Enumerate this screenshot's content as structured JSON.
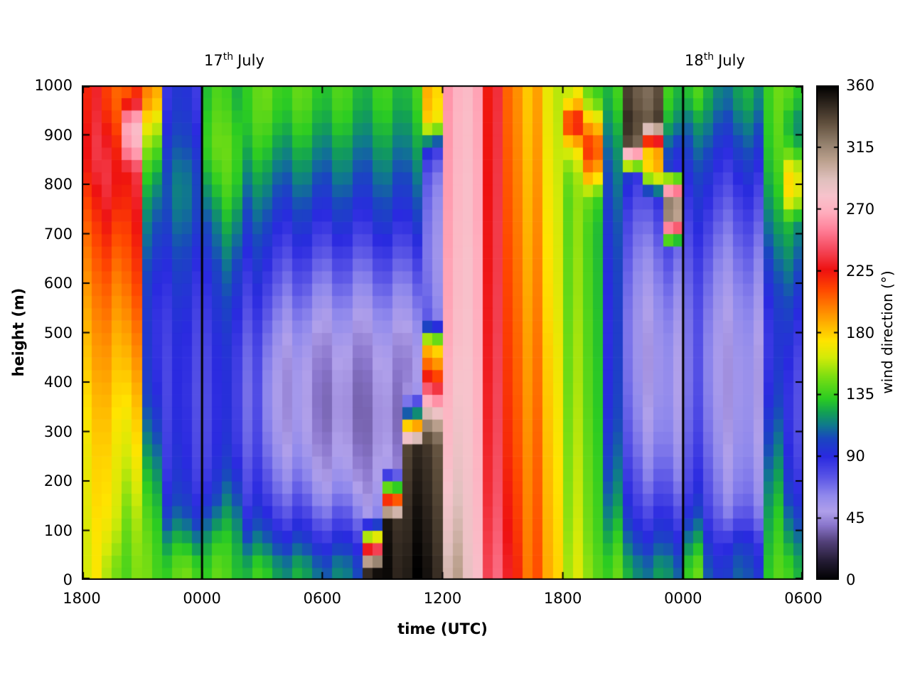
{
  "figure": {
    "background": "#ffffff"
  },
  "chart_data": {
    "type": "heatmap",
    "title": "",
    "xlabel": "time (UTC)",
    "ylabel": "height (m)",
    "colorbar_label": "wind direction (°)",
    "x_ticks": [
      "1800",
      "0000",
      "0600",
      "1200",
      "1800",
      "0000",
      "0600"
    ],
    "x_tick_hours": [
      0,
      6,
      12,
      18,
      24,
      30,
      36
    ],
    "x_range_hours": [
      0,
      36
    ],
    "y_ticks": [
      0,
      100,
      200,
      300,
      400,
      500,
      600,
      700,
      800,
      900,
      1000
    ],
    "y_range": [
      0,
      1000
    ],
    "colorbar_ticks": [
      0,
      45,
      90,
      135,
      180,
      225,
      270,
      315,
      360
    ],
    "colorbar_range": [
      0,
      360
    ],
    "day_lines_hours": [
      6,
      30
    ],
    "annotations": [
      {
        "day": "17",
        "suffix": "th",
        "month": "July",
        "at_hour": 6
      },
      {
        "day": "18",
        "suffix": "th",
        "month": "July",
        "at_hour": 30
      }
    ],
    "colormap": [
      [
        0,
        "#000000"
      ],
      [
        14,
        "#241c34"
      ],
      [
        28,
        "#53417a"
      ],
      [
        40,
        "#8a76cc"
      ],
      [
        50,
        "#b0a0ea"
      ],
      [
        62,
        "#8f88ec"
      ],
      [
        75,
        "#5a55e6"
      ],
      [
        90,
        "#2a2ae0"
      ],
      [
        103,
        "#1a46c0"
      ],
      [
        113,
        "#0f7a8c"
      ],
      [
        122,
        "#12a055"
      ],
      [
        132,
        "#2bcc22"
      ],
      [
        148,
        "#7ade12"
      ],
      [
        162,
        "#d2ea08"
      ],
      [
        174,
        "#ffe400"
      ],
      [
        186,
        "#ffb400"
      ],
      [
        198,
        "#ff8200"
      ],
      [
        212,
        "#ff4600"
      ],
      [
        226,
        "#ee1111"
      ],
      [
        240,
        "#f44658"
      ],
      [
        255,
        "#ff8098"
      ],
      [
        268,
        "#ffaebe"
      ],
      [
        280,
        "#f7c3cc"
      ],
      [
        292,
        "#dfc0bd"
      ],
      [
        305,
        "#bda28f"
      ],
      [
        318,
        "#93806d"
      ],
      [
        332,
        "#63523f"
      ],
      [
        345,
        "#352b22"
      ],
      [
        360,
        "#000000"
      ]
    ],
    "grid": {
      "time_step_hours": 1,
      "height_step_m": 50,
      "order": "each column bottom(0 m) to top(1000 m), wind direction degrees",
      "stripe_jitter": 5,
      "columns": [
        [
          168,
          168,
          170,
          172,
          173,
          175,
          178,
          181,
          185,
          188,
          192,
          196,
          201,
          206,
          212,
          219,
          228,
          232,
          229,
          226
        ],
        [
          152,
          160,
          167,
          170,
          172,
          175,
          178,
          182,
          186,
          190,
          195,
          200,
          206,
          213,
          220,
          228,
          231,
          226,
          216,
          210
        ],
        [
          144,
          147,
          151,
          157,
          164,
          170,
          175,
          181,
          187,
          193,
          199,
          205,
          211,
          216,
          221,
          226,
          231,
          266,
          272,
          214
        ],
        [
          142,
          140,
          136,
          130,
          122,
          112,
          103,
          96,
          93,
          92,
          92,
          94,
          98,
          104,
          110,
          118,
          130,
          146,
          168,
          192
        ],
        [
          138,
          125,
          106,
          95,
          90,
          88,
          86,
          85,
          85,
          86,
          88,
          91,
          95,
          100,
          106,
          110,
          108,
          101,
          95,
          91
        ],
        [
          141,
          121,
          101,
          91,
          86,
          84,
          83,
          82,
          83,
          84,
          86,
          89,
          93,
          98,
          104,
          108,
          106,
          99,
          93,
          89
        ],
        [
          138,
          128,
          110,
          95,
          88,
          85,
          84,
          84,
          85,
          86,
          89,
          92,
          96,
          103,
          110,
          121,
          132,
          140,
          138,
          134
        ],
        [
          134,
          129,
          119,
          107,
          96,
          90,
          88,
          87,
          88,
          90,
          94,
          99,
          105,
          113,
          122,
          132,
          138,
          140,
          136,
          131
        ],
        [
          131,
          112,
          95,
          85,
          80,
          76,
          74,
          73,
          74,
          76,
          80,
          85,
          91,
          97,
          104,
          112,
          121,
          130,
          136,
          138
        ],
        [
          126,
          105,
          88,
          76,
          68,
          62,
          58,
          57,
          58,
          62,
          68,
          75,
          82,
          90,
          98,
          107,
          116,
          126,
          135,
          140
        ],
        [
          121,
          100,
          82,
          70,
          60,
          54,
          50,
          49,
          50,
          54,
          60,
          68,
          76,
          85,
          94,
          103,
          113,
          122,
          132,
          138
        ],
        [
          116,
          95,
          78,
          64,
          55,
          48,
          45,
          44,
          46,
          50,
          57,
          65,
          74,
          84,
          93,
          102,
          112,
          121,
          130,
          136
        ],
        [
          111,
          92,
          74,
          60,
          50,
          45,
          42,
          42,
          44,
          48,
          55,
          63,
          72,
          82,
          92,
          101,
          110,
          118,
          128,
          134
        ],
        [
          108,
          90,
          72,
          58,
          48,
          43,
          41,
          41,
          43,
          47,
          54,
          62,
          71,
          81,
          91,
          100,
          109,
          117,
          126,
          132
        ],
        [
          350,
          195,
          60,
          50,
          45,
          42,
          41,
          42,
          44,
          48,
          55,
          63,
          72,
          82,
          92,
          100,
          108,
          116,
          124,
          130
        ],
        [
          352,
          350,
          347,
          168,
          48,
          44,
          42,
          43,
          45,
          49,
          56,
          64,
          73,
          83,
          93,
          101,
          109,
          117,
          125,
          131
        ],
        [
          355,
          352,
          350,
          347,
          344,
          341,
          132,
          52,
          46,
          50,
          57,
          65,
          74,
          84,
          94,
          102,
          110,
          118,
          126,
          132
        ],
        [
          349,
          346,
          344,
          341,
          339,
          336,
          303,
          252,
          206,
          176,
          70,
          65,
          62,
          61,
          63,
          66,
          72,
          92,
          174,
          182
        ],
        [
          301,
          295,
          290,
          286,
          282,
          280,
          278,
          276,
          274,
          272,
          271,
          270,
          270,
          269,
          269,
          268,
          268,
          267,
          267,
          266
        ],
        [
          282,
          280,
          279,
          278,
          277,
          276,
          276,
          275,
          275,
          274,
          274,
          273,
          273,
          273,
          272,
          272,
          272,
          271,
          271,
          270
        ],
        [
          244,
          242,
          240,
          238,
          237,
          236,
          235,
          235,
          234,
          234,
          233,
          233,
          232,
          232,
          232,
          231,
          231,
          230,
          230,
          229
        ],
        [
          225,
          222,
          220,
          218,
          216,
          214,
          213,
          212,
          211,
          210,
          209,
          208,
          207,
          206,
          205,
          204,
          203,
          202,
          201,
          200
        ],
        [
          205,
          204,
          203,
          202,
          201,
          200,
          199,
          198,
          197,
          196,
          195,
          194,
          193,
          192,
          191,
          190,
          189,
          188,
          187,
          186
        ],
        [
          183,
          182,
          181,
          180,
          179,
          178,
          177,
          176,
          175,
          174,
          172,
          171,
          170,
          169,
          168,
          167,
          166,
          165,
          164,
          163
        ],
        [
          160,
          158,
          156,
          155,
          154,
          153,
          152,
          151,
          150,
          150,
          149,
          148,
          148,
          147,
          147,
          146,
          151,
          172,
          228,
          166
        ],
        [
          146,
          143,
          141,
          140,
          139,
          138,
          137,
          136,
          136,
          135,
          135,
          134,
          134,
          133,
          134,
          141,
          192,
          216,
          182,
          141
        ],
        [
          139,
          131,
          121,
          113,
          107,
          102,
          98,
          96,
          95,
          94,
          94,
          95,
          97,
          99,
          101,
          105,
          109,
          115,
          123,
          131
        ],
        [
          121,
          106,
          93,
          84,
          78,
          72,
          68,
          65,
          63,
          62,
          62,
          64,
          67,
          71,
          76,
          83,
          94,
          328,
          341,
          334
        ],
        [
          116,
          99,
          86,
          75,
          66,
          60,
          56,
          53,
          52,
          52,
          54,
          57,
          61,
          67,
          75,
          84,
          181,
          186,
          336,
          329
        ],
        [
          113,
          97,
          85,
          74,
          66,
          60,
          57,
          55,
          55,
          56,
          59,
          63,
          69,
          76,
          309,
          314,
          92,
          101,
          121,
          131
        ],
        [
          139,
          121,
          101,
          88,
          82,
          78,
          75,
          73,
          72,
          72,
          73,
          75,
          78,
          82,
          87,
          92,
          98,
          106,
          116,
          134
        ],
        [
          101,
          91,
          79,
          72,
          68,
          64,
          61,
          59,
          58,
          58,
          60,
          63,
          67,
          72,
          78,
          85,
          92,
          100,
          110,
          120
        ],
        [
          103,
          93,
          71,
          61,
          57,
          54,
          52,
          51,
          51,
          52,
          54,
          57,
          61,
          66,
          72,
          79,
          87,
          96,
          106,
          116
        ],
        [
          100,
          90,
          72,
          63,
          59,
          56,
          54,
          53,
          53,
          54,
          57,
          60,
          65,
          70,
          77,
          84,
          92,
          101,
          111,
          121
        ],
        [
          136,
          132,
          128,
          122,
          115,
          108,
          101,
          95,
          92,
          90,
          92,
          96,
          102,
          110,
          118,
          126,
          132,
          136,
          138,
          140
        ],
        [
          131,
          119,
          106,
          95,
          88,
          84,
          82,
          82,
          84,
          88,
          94,
          100,
          108,
          116,
          124,
          170,
          172,
          131,
          121,
          136
        ]
      ]
    }
  }
}
